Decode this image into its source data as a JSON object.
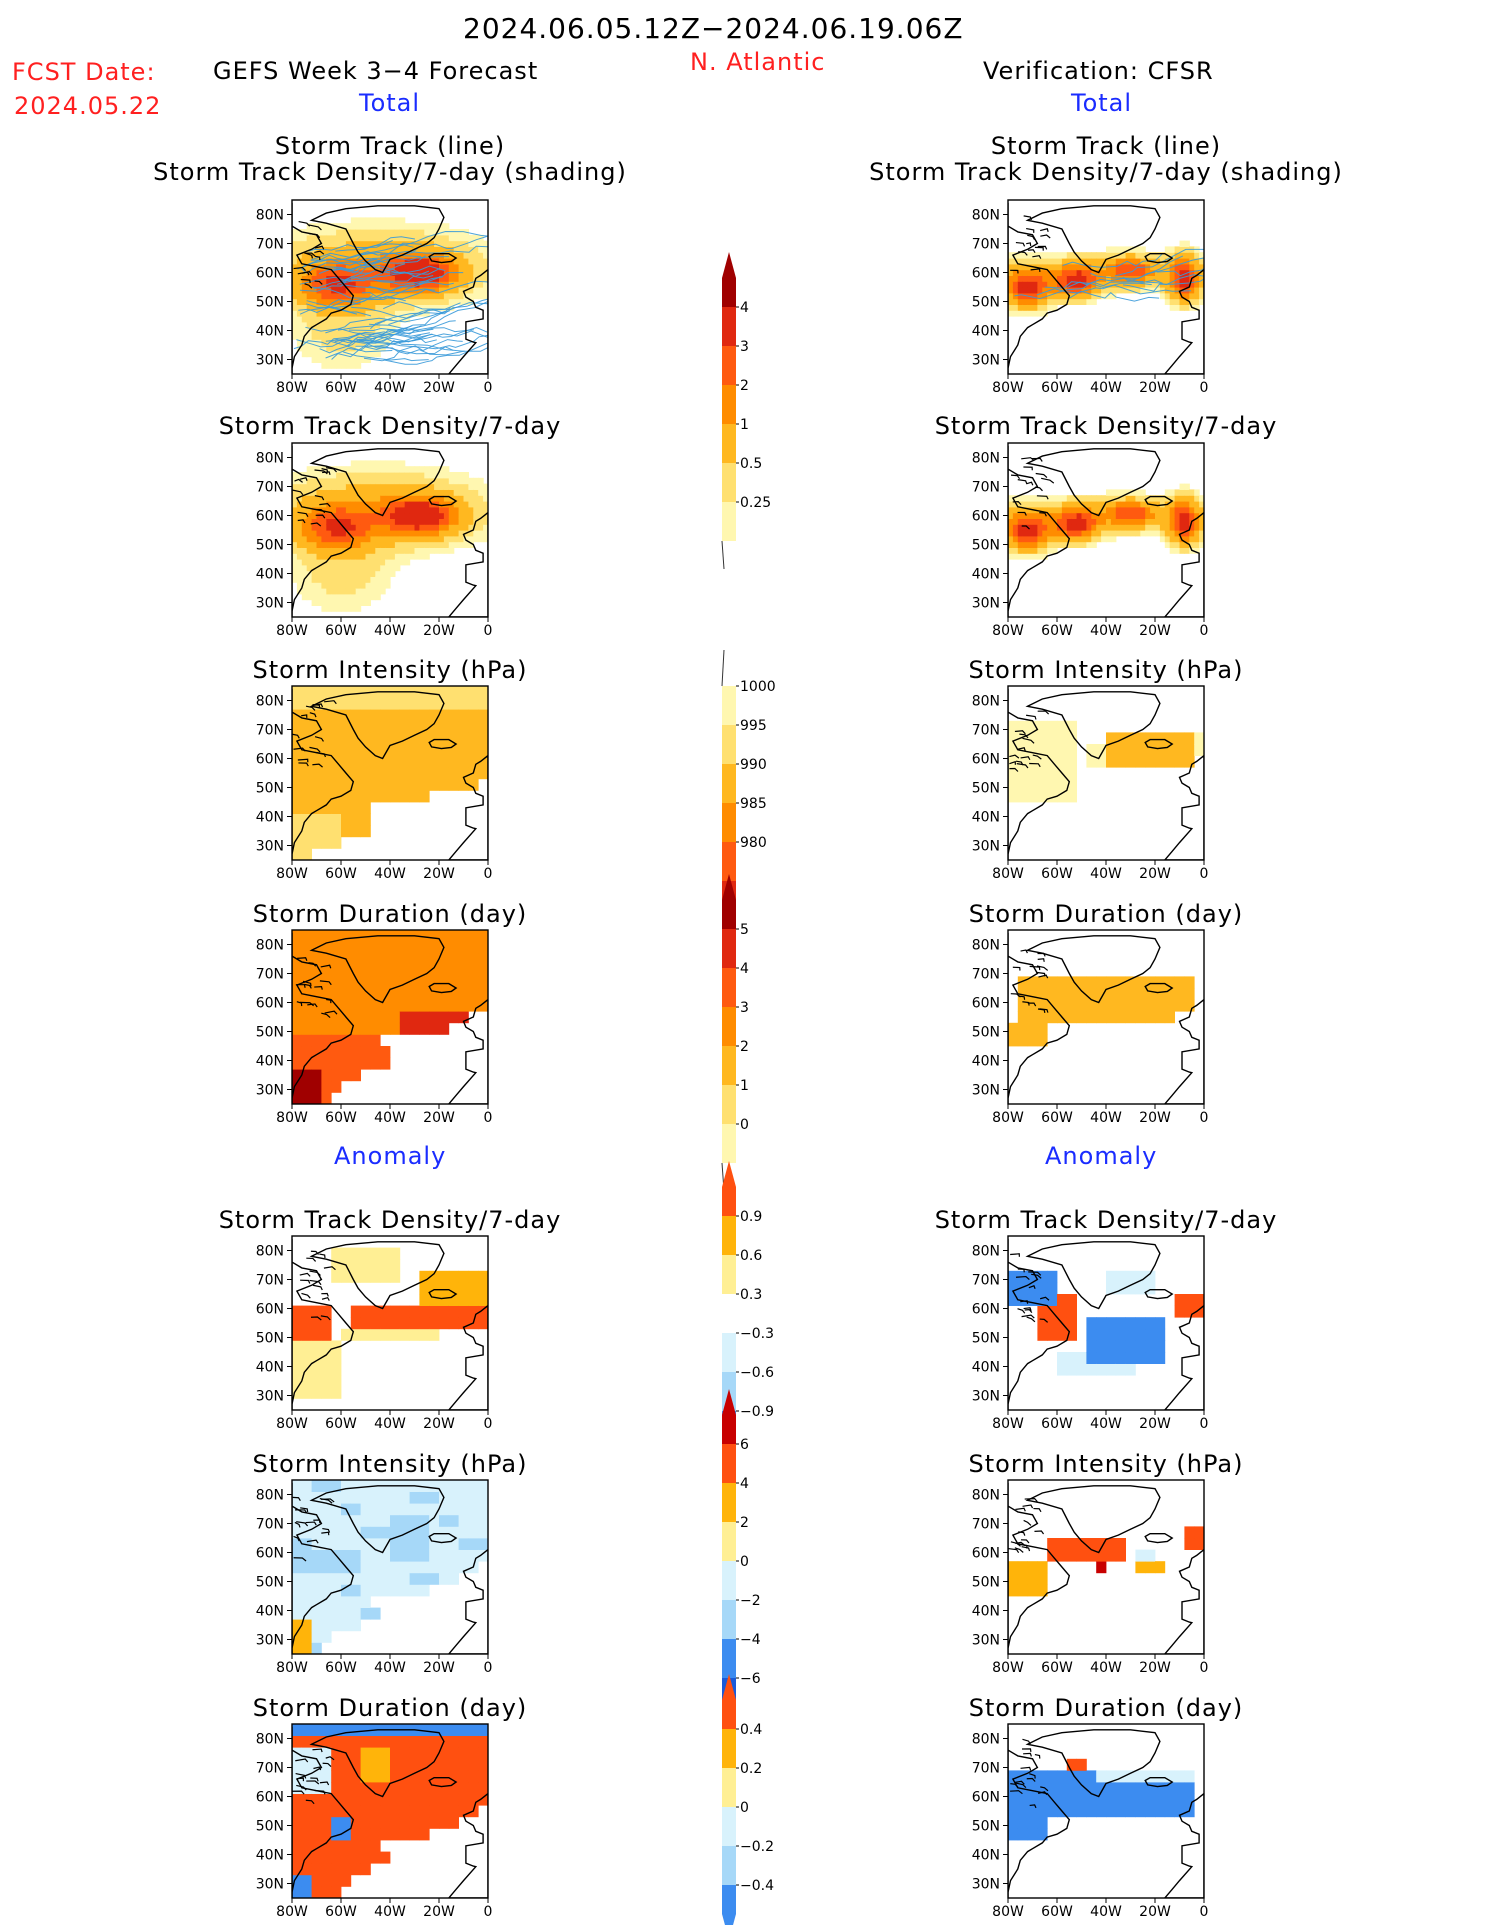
{
  "header": {
    "date_range": "2024.06.05.12Z−2024.06.19.06Z",
    "region": "N. Atlantic",
    "fcst_label": "FCST Date:",
    "fcst_date": "2024.05.22",
    "left_title": "GEFS Week 3−4 Forecast",
    "right_title": "Verification: CFSR",
    "section_total": "Total",
    "section_anomaly": "Anomaly"
  },
  "colors": {
    "total_scale": [
      "#fff7b0",
      "#ffe070",
      "#ffb820",
      "#ff8c00",
      "#ff5a10",
      "#e02810",
      "#a00000"
    ],
    "anom_scale": [
      "#1a5ad8",
      "#3c8cf0",
      "#a6d8f8",
      "#d8f2fc",
      "#ffffff",
      "#ffef94",
      "#ffb40a",
      "#ff5010",
      "#c80000"
    ]
  },
  "chart_data": [
    {
      "id": "storm_track",
      "type": "heatmap",
      "column": "forecast",
      "section": "Total",
      "title_line1": "Storm Track (line)",
      "title_line2": "Storm Track Density/7-day (shading)",
      "x_ticks": [
        "80W",
        "60W",
        "40W",
        "20W",
        "0"
      ],
      "y_ticks": [
        "80N",
        "70N",
        "60N",
        "50N",
        "40N",
        "30N"
      ],
      "xlim": [
        -80,
        0
      ],
      "ylim": [
        25,
        85
      ],
      "density_max": 4.6,
      "has_tracks": true,
      "colorbar_id": "density"
    },
    {
      "id": "storm_track_obs",
      "type": "heatmap",
      "column": "verification",
      "section": "Total",
      "title_line1": "Storm Track (line)",
      "title_line2": "Storm Track Density/7-day (shading)",
      "x_ticks": [
        "80W",
        "60W",
        "40W",
        "20W",
        "0"
      ],
      "y_ticks": [
        "80N",
        "70N",
        "60N",
        "50N",
        "40N",
        "30N"
      ],
      "xlim": [
        -80,
        0
      ],
      "ylim": [
        25,
        85
      ],
      "density_max": 4.4,
      "has_tracks": true,
      "colorbar_id": "density"
    },
    {
      "id": "density_fcst",
      "type": "heatmap",
      "column": "forecast",
      "section": "Total",
      "title": "Storm Track Density/7-day",
      "x_ticks": [
        "80W",
        "60W",
        "40W",
        "20W",
        "0"
      ],
      "y_ticks": [
        "80N",
        "70N",
        "60N",
        "50N",
        "40N",
        "30N"
      ],
      "xlim": [
        -80,
        0
      ],
      "ylim": [
        25,
        85
      ],
      "colorbar_id": "density"
    },
    {
      "id": "density_obs",
      "type": "heatmap",
      "column": "verification",
      "section": "Total",
      "title": "Storm Track Density/7-day",
      "x_ticks": [
        "80W",
        "60W",
        "40W",
        "20W",
        "0"
      ],
      "y_ticks": [
        "80N",
        "70N",
        "60N",
        "50N",
        "40N",
        "30N"
      ],
      "xlim": [
        -80,
        0
      ],
      "ylim": [
        25,
        85
      ],
      "colorbar_id": "density"
    },
    {
      "id": "intensity_fcst",
      "type": "heatmap",
      "column": "forecast",
      "section": "Total",
      "title": "Storm Intensity (hPa)",
      "x_ticks": [
        "80W",
        "60W",
        "40W",
        "20W",
        "0"
      ],
      "y_ticks": [
        "80N",
        "70N",
        "60N",
        "50N",
        "40N",
        "30N"
      ],
      "xlim": [
        -80,
        0
      ],
      "ylim": [
        25,
        85
      ],
      "colorbar_id": "intensity"
    },
    {
      "id": "intensity_obs",
      "type": "heatmap",
      "column": "verification",
      "section": "Total",
      "title": "Storm Intensity (hPa)",
      "x_ticks": [
        "80W",
        "60W",
        "40W",
        "20W",
        "0"
      ],
      "y_ticks": [
        "80N",
        "70N",
        "60N",
        "50N",
        "40N",
        "30N"
      ],
      "xlim": [
        -80,
        0
      ],
      "ylim": [
        25,
        85
      ],
      "colorbar_id": "intensity"
    },
    {
      "id": "duration_fcst",
      "type": "heatmap",
      "column": "forecast",
      "section": "Total",
      "title": "Storm Duration (day)",
      "x_ticks": [
        "80W",
        "60W",
        "40W",
        "20W",
        "0"
      ],
      "y_ticks": [
        "80N",
        "70N",
        "60N",
        "50N",
        "40N",
        "30N"
      ],
      "xlim": [
        -80,
        0
      ],
      "ylim": [
        25,
        85
      ],
      "colorbar_id": "duration"
    },
    {
      "id": "duration_obs",
      "type": "heatmap",
      "column": "verification",
      "section": "Total",
      "title": "Storm Duration (day)",
      "x_ticks": [
        "80W",
        "60W",
        "40W",
        "20W",
        "0"
      ],
      "y_ticks": [
        "80N",
        "70N",
        "60N",
        "50N",
        "40N",
        "30N"
      ],
      "xlim": [
        -80,
        0
      ],
      "ylim": [
        25,
        85
      ],
      "colorbar_id": "duration"
    },
    {
      "id": "density_anom_fcst",
      "type": "heatmap",
      "column": "forecast",
      "section": "Anomaly",
      "title": "Storm Track Density/7-day",
      "x_ticks": [
        "80W",
        "60W",
        "40W",
        "20W",
        "0"
      ],
      "y_ticks": [
        "80N",
        "70N",
        "60N",
        "50N",
        "40N",
        "30N"
      ],
      "xlim": [
        -80,
        0
      ],
      "ylim": [
        25,
        85
      ],
      "colorbar_id": "density_anom"
    },
    {
      "id": "density_anom_obs",
      "type": "heatmap",
      "column": "verification",
      "section": "Anomaly",
      "title": "Storm Track Density/7-day",
      "x_ticks": [
        "80W",
        "60W",
        "40W",
        "20W",
        "0"
      ],
      "y_ticks": [
        "80N",
        "70N",
        "60N",
        "50N",
        "40N",
        "30N"
      ],
      "xlim": [
        -80,
        0
      ],
      "ylim": [
        25,
        85
      ],
      "colorbar_id": "density_anom"
    },
    {
      "id": "intensity_anom_fcst",
      "type": "heatmap",
      "column": "forecast",
      "section": "Anomaly",
      "title": "Storm Intensity (hPa)",
      "x_ticks": [
        "80W",
        "60W",
        "40W",
        "20W",
        "0"
      ],
      "y_ticks": [
        "80N",
        "70N",
        "60N",
        "50N",
        "40N",
        "30N"
      ],
      "xlim": [
        -80,
        0
      ],
      "ylim": [
        25,
        85
      ],
      "colorbar_id": "intensity_anom"
    },
    {
      "id": "intensity_anom_obs",
      "type": "heatmap",
      "column": "verification",
      "section": "Anomaly",
      "title": "Storm Intensity (hPa)",
      "x_ticks": [
        "80W",
        "60W",
        "40W",
        "20W",
        "0"
      ],
      "y_ticks": [
        "80N",
        "70N",
        "60N",
        "50N",
        "40N",
        "30N"
      ],
      "xlim": [
        -80,
        0
      ],
      "ylim": [
        25,
        85
      ],
      "colorbar_id": "intensity_anom"
    },
    {
      "id": "duration_anom_fcst",
      "type": "heatmap",
      "column": "forecast",
      "section": "Anomaly",
      "title": "Storm Duration (day)",
      "x_ticks": [
        "80W",
        "60W",
        "40W",
        "20W",
        "0"
      ],
      "y_ticks": [
        "80N",
        "70N",
        "60N",
        "50N",
        "40N",
        "30N"
      ],
      "xlim": [
        -80,
        0
      ],
      "ylim": [
        25,
        85
      ],
      "colorbar_id": "duration_anom"
    },
    {
      "id": "duration_anom_obs",
      "type": "heatmap",
      "column": "verification",
      "section": "Anomaly",
      "title": "Storm Duration (day)",
      "x_ticks": [
        "80W",
        "60W",
        "40W",
        "20W",
        "0"
      ],
      "y_ticks": [
        "80N",
        "70N",
        "60N",
        "50N",
        "40N",
        "30N"
      ],
      "xlim": [
        -80,
        0
      ],
      "ylim": [
        25,
        85
      ],
      "colorbar_id": "duration_anom"
    }
  ],
  "colorbars": [
    {
      "id": "density",
      "labels": [
        "4",
        "3",
        "2",
        "1",
        "0.5",
        "0.25"
      ],
      "colors": [
        "#a00000",
        "#e02810",
        "#ff5a10",
        "#ff8c00",
        "#ffb820",
        "#ffe070",
        "#fff7b0"
      ]
    },
    {
      "id": "intensity",
      "labels": [
        "1000",
        "995",
        "990",
        "985",
        "980"
      ],
      "colors": [
        "#fff7b0",
        "#ffe070",
        "#ffb820",
        "#ff8c00",
        "#ff5a10",
        "#e02810",
        "#a00000"
      ]
    },
    {
      "id": "duration",
      "labels": [
        "5",
        "4",
        "3",
        "2",
        "1",
        "0"
      ],
      "colors": [
        "#a00000",
        "#e02810",
        "#ff5a10",
        "#ff8c00",
        "#ffb820",
        "#ffe070",
        "#fff7b0"
      ]
    },
    {
      "id": "density_anom",
      "labels": [
        "0.9",
        "0.6",
        "0.3",
        "−0.3",
        "−0.6",
        "−0.9"
      ],
      "colors": [
        "#ff5010",
        "#ffb40a",
        "#ffef94",
        "#ffffff",
        "#d8f2fc",
        "#a6d8f8",
        "#3c8cf0"
      ]
    },
    {
      "id": "intensity_anom",
      "labels": [
        "6",
        "4",
        "2",
        "0",
        "−2",
        "−4",
        "−6"
      ],
      "colors": [
        "#c80000",
        "#ff5010",
        "#ffb40a",
        "#ffef94",
        "#d8f2fc",
        "#a6d8f8",
        "#3c8cf0",
        "#1a5ad8"
      ]
    },
    {
      "id": "duration_anom",
      "labels": [
        "0.4",
        "0.2",
        "0",
        "−0.2",
        "−0.4"
      ],
      "colors": [
        "#ff5010",
        "#ffb40a",
        "#ffef94",
        "#d8f2fc",
        "#a6d8f8",
        "#3c8cf0"
      ]
    }
  ]
}
